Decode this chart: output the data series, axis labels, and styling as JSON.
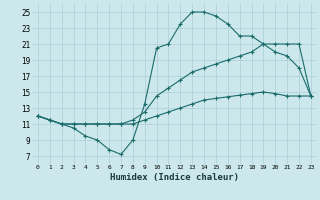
{
  "xlabel": "Humidex (Indice chaleur)",
  "bg_color": "#cce8ec",
  "grid_color": "#aacdd4",
  "line_color": "#1a6b6b",
  "xlim": [
    -0.5,
    23.5
  ],
  "ylim": [
    6,
    26
  ],
  "xticks": [
    0,
    1,
    2,
    3,
    4,
    5,
    6,
    7,
    8,
    9,
    10,
    11,
    12,
    13,
    14,
    15,
    16,
    17,
    18,
    19,
    20,
    21,
    22,
    23
  ],
  "yticks": [
    7,
    9,
    11,
    13,
    15,
    17,
    19,
    21,
    23,
    25
  ],
  "line1_x": [
    0,
    1,
    2,
    3,
    4,
    5,
    6,
    7,
    8,
    9,
    10,
    11,
    12,
    13,
    14,
    15,
    16,
    17,
    18,
    19,
    20,
    21,
    22,
    23
  ],
  "line1_y": [
    12.0,
    11.5,
    11.0,
    10.5,
    9.5,
    9.0,
    7.8,
    7.2,
    9.0,
    13.5,
    20.5,
    21.0,
    23.5,
    25.0,
    25.0,
    24.5,
    23.5,
    22.0,
    22.0,
    21.0,
    20.0,
    19.5,
    18.0,
    14.5
  ],
  "line2_x": [
    0,
    1,
    2,
    3,
    4,
    5,
    6,
    7,
    8,
    9,
    10,
    11,
    12,
    13,
    14,
    15,
    16,
    17,
    18,
    19,
    20,
    21,
    22,
    23
  ],
  "line2_y": [
    12.0,
    11.5,
    11.0,
    11.0,
    11.0,
    11.0,
    11.0,
    11.0,
    11.5,
    12.5,
    14.5,
    15.5,
    16.5,
    17.5,
    18.0,
    18.5,
    19.0,
    19.5,
    20.0,
    21.0,
    21.0,
    21.0,
    21.0,
    14.5
  ],
  "line3_x": [
    0,
    1,
    2,
    3,
    4,
    5,
    6,
    7,
    8,
    9,
    10,
    11,
    12,
    13,
    14,
    15,
    16,
    17,
    18,
    19,
    20,
    21,
    22,
    23
  ],
  "line3_y": [
    12.0,
    11.5,
    11.0,
    11.0,
    11.0,
    11.0,
    11.0,
    11.0,
    11.0,
    11.5,
    12.0,
    12.5,
    13.0,
    13.5,
    14.0,
    14.2,
    14.4,
    14.6,
    14.8,
    15.0,
    14.8,
    14.5,
    14.5,
    14.5
  ]
}
